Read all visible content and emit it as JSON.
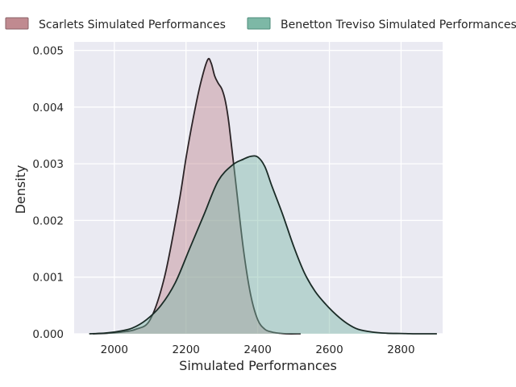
{
  "chart_data": {
    "type": "area",
    "xlabel": "Simulated Performances",
    "ylabel": "Density",
    "xlim": [
      1888,
      2916
    ],
    "ylim": [
      0,
      0.00515
    ],
    "x_ticks": [
      2000,
      2200,
      2400,
      2600,
      2800
    ],
    "y_ticks": [
      0.0,
      0.001,
      0.002,
      0.003,
      0.004,
      0.005
    ],
    "x_tick_labels": [
      "2000",
      "2200",
      "2400",
      "2600",
      "2800"
    ],
    "y_tick_labels": [
      "0.000",
      "0.001",
      "0.002",
      "0.003",
      "0.004",
      "0.005"
    ],
    "grid": true,
    "legend_placement": "top, above plot",
    "series": [
      {
        "name": "Scarlets Simulated Performances",
        "color": "#c08a90",
        "x": [
          1940,
          1980,
          2020,
          2060,
          2100,
          2140,
          2180,
          2200,
          2220,
          2240,
          2260,
          2270,
          2280,
          2290,
          2300,
          2310,
          2320,
          2340,
          2360,
          2380,
          2400,
          2420,
          2440,
          2460,
          2480,
          2520
        ],
        "y": [
          0.0,
          1e-05,
          3e-05,
          8e-05,
          0.00025,
          0.001,
          0.0023,
          0.0031,
          0.0038,
          0.0044,
          0.00483,
          0.00478,
          0.00455,
          0.00442,
          0.00432,
          0.0041,
          0.0037,
          0.0026,
          0.0015,
          0.0007,
          0.00025,
          8e-05,
          3e-05,
          1e-05,
          0.0,
          0.0
        ]
      },
      {
        "name": "Benetton Treviso Simulated Performances",
        "color": "#7db8a6",
        "x": [
          1930,
          1970,
          2010,
          2050,
          2090,
          2130,
          2170,
          2210,
          2250,
          2290,
          2330,
          2360,
          2380,
          2400,
          2420,
          2440,
          2470,
          2500,
          2530,
          2560,
          2590,
          2620,
          2650,
          2680,
          2720,
          2760,
          2800,
          2840,
          2880,
          2900
        ],
        "y": [
          0.0,
          1e-05,
          4e-05,
          0.0001,
          0.00025,
          0.0005,
          0.0009,
          0.0015,
          0.0021,
          0.0027,
          0.00298,
          0.00308,
          0.00313,
          0.00312,
          0.00295,
          0.0026,
          0.0021,
          0.00155,
          0.00108,
          0.00075,
          0.00052,
          0.00033,
          0.00018,
          8e-05,
          3e-05,
          1e-05,
          5e-06,
          0.0,
          0.0,
          0.0
        ]
      }
    ]
  }
}
